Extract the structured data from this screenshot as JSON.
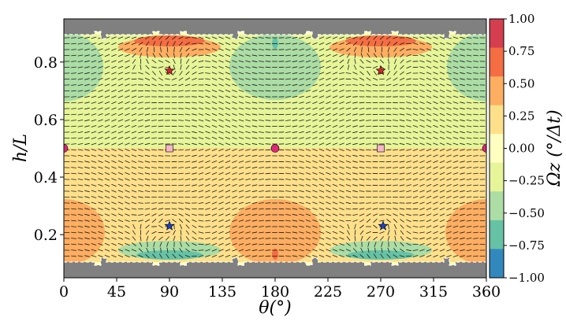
{
  "chart_data": {
    "type": "heatmap",
    "title": "",
    "xlabel": "θ(°)",
    "ylabel": "h/L",
    "colorbar_label": "Ωz (°/Δt)",
    "xlim": [
      0,
      360
    ],
    "ylim": [
      0.05,
      0.95
    ],
    "xticks": [
      0,
      45,
      90,
      135,
      180,
      225,
      270,
      315,
      360
    ],
    "yticks": [
      0.2,
      0.4,
      0.6,
      0.8
    ],
    "ytick_labels": [
      "0.2",
      "0.4",
      "0.6",
      "0.8"
    ],
    "colorbar_range": [
      -1.0,
      1.0
    ],
    "colorbar_ticks": [
      "1.00",
      "0.75",
      "0.50",
      "0.25",
      "0.00",
      "−0.25",
      "−0.50",
      "−0.75",
      "−1.00"
    ],
    "colormap": [
      "#d53e4f",
      "#f46d43",
      "#fdae61",
      "#fee08b",
      "#ffffbf",
      "#e6f598",
      "#abdda4",
      "#66c2a5",
      "#3288bd"
    ],
    "boundary_color": "#808080",
    "vortices": [
      {
        "x": 90,
        "y": 0.77,
        "marker": "star",
        "color": "#d62728"
      },
      {
        "x": 270,
        "y": 0.77,
        "marker": "star",
        "color": "#d62728"
      },
      {
        "x": 90,
        "y": 0.23,
        "marker": "star",
        "color": "#1f3fbf"
      },
      {
        "x": 272,
        "y": 0.23,
        "marker": "star",
        "color": "#1f3fbf"
      },
      {
        "x": 0,
        "y": 0.5,
        "marker": "circle",
        "color": "#e0287a"
      },
      {
        "x": 180,
        "y": 0.5,
        "marker": "circle",
        "color": "#e0287a"
      },
      {
        "x": 360,
        "y": 0.5,
        "marker": "circle",
        "color": "#e0287a"
      },
      {
        "x": 90,
        "y": 0.5,
        "marker": "square",
        "color": "#f4b8c8"
      },
      {
        "x": 270,
        "y": 0.5,
        "marker": "square",
        "color": "#f4b8c8"
      }
    ]
  }
}
